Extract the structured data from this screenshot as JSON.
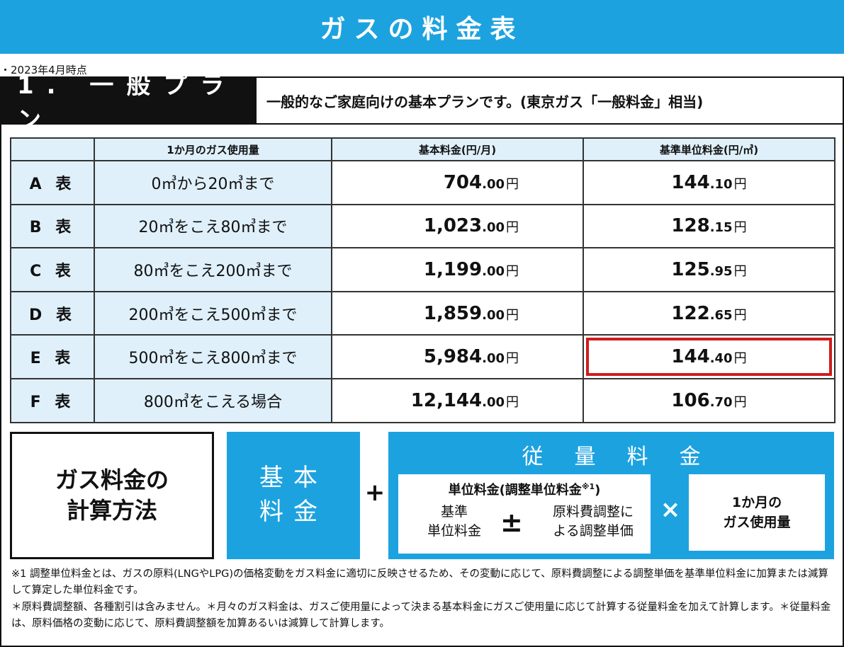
{
  "title": "ガスの料金表",
  "date_note": "・2023年4月時点",
  "plan": {
    "name": "1. 一般プラン",
    "description": "一般的なご家庭向けの基本プランです。(東京ガス「一般料金」相当)"
  },
  "table": {
    "headers": [
      "",
      "1か月のガス使用量",
      "基本料金(円/月)",
      "基準単位料金(円/㎥)"
    ],
    "rows": [
      {
        "label": "A 表",
        "usage": "0㎥から20㎥まで",
        "base_int": "704",
        "base_dec": ".00",
        "unit_int": "144",
        "unit_dec": ".10",
        "yen": "円"
      },
      {
        "label": "B 表",
        "usage": "20㎥をこえ80㎥まで",
        "base_int": "1,023",
        "base_dec": ".00",
        "unit_int": "128",
        "unit_dec": ".15",
        "yen": "円"
      },
      {
        "label": "C 表",
        "usage": "80㎥をこえ200㎥まで",
        "base_int": "1,199",
        "base_dec": ".00",
        "unit_int": "125",
        "unit_dec": ".95",
        "yen": "円"
      },
      {
        "label": "D 表",
        "usage": "200㎥をこえ500㎥まで",
        "base_int": "1,859",
        "base_dec": ".00",
        "unit_int": "122",
        "unit_dec": ".65",
        "yen": "円"
      },
      {
        "label": "E 表",
        "usage": "500㎥をこえ800㎥まで",
        "base_int": "5,984",
        "base_dec": ".00",
        "unit_int": "144",
        "unit_dec": ".40",
        "yen": "円"
      },
      {
        "label": "F 表",
        "usage": "800㎥をこえる場合",
        "base_int": "12,144",
        "base_dec": ".00",
        "unit_int": "106",
        "unit_dec": ".70",
        "yen": "円"
      }
    ],
    "highlight_color": "#d01c1c"
  },
  "calc": {
    "label_line1": "ガス料金の",
    "label_line2": "計算方法",
    "base_line1": "基本",
    "base_line2": "料金",
    "plus": "+",
    "variable_title": "従量料金",
    "unit_title": "単位料金(調整単位料金",
    "unit_title_note": "※1",
    "unit_title_close": ")",
    "unit_left_line1": "基準",
    "unit_left_line2": "単位料金",
    "plus_minus": "±",
    "unit_right_line1": "原料費調整に",
    "unit_right_line2": "よる調整単価",
    "times": "×",
    "monthly_line1": "1か月の",
    "monthly_line2": "ガス使用量"
  },
  "footnotes": {
    "note1": "※1 調整単位料金とは、ガスの原料(LNGやLPG)の価格変動をガス料金に適切に反映させるため、その変動に応じて、原料費調整による調整単価を基準単位料金に加算または減算して算定した単位料金です。",
    "note2": "＊原料費調整額、各種割引は含みません。＊月々のガス料金は、ガスご使用量によって決まる基本料金にガスご使用量に応じて計算する従量料金を加えて計算します。＊従量料金は、原料価格の変動に応じて、原料費調整額を加算あるいは減算して計算します。"
  },
  "colors": {
    "accent": "#1da2e0",
    "table_label_bg": "#dff0fb",
    "dark": "#111111"
  }
}
